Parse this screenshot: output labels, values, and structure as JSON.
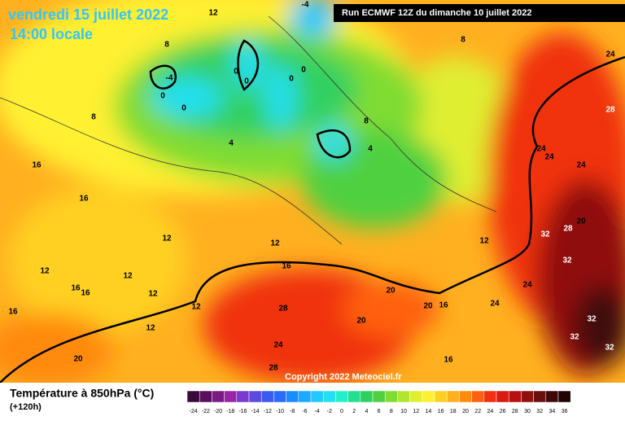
{
  "header": {
    "date": "vendredi 15 juillet 2022",
    "time": "14:00 locale",
    "run": "Run ECMWF 12Z du dimanche 10 juillet 2022"
  },
  "copyright": "Copyright 2022 Meteociel.fr",
  "legend": {
    "title": "Température à 850hPa (°C)",
    "lead": "(+120h)",
    "labels": [
      -24,
      -22,
      -20,
      -18,
      -16,
      -14,
      -12,
      -10,
      -8,
      -6,
      -4,
      -2,
      0,
      2,
      4,
      6,
      8,
      10,
      12,
      14,
      16,
      18,
      20,
      22,
      24,
      26,
      28,
      30,
      32,
      34,
      36
    ],
    "colors": [
      "#3a0a3a",
      "#5a0f5e",
      "#7a1a86",
      "#9a24a8",
      "#7a3ad0",
      "#5a4ae0",
      "#3a5af0",
      "#2a6aff",
      "#1a8cff",
      "#1aaaff",
      "#22c8ff",
      "#22e0f0",
      "#22f0c8",
      "#22e090",
      "#30d060",
      "#50d040",
      "#80dc30",
      "#b0e630",
      "#e0ee30",
      "#fff030",
      "#ffd020",
      "#ffb020",
      "#ff8a10",
      "#ff6010",
      "#f03010",
      "#d81a10",
      "#b81010",
      "#901010",
      "#681010",
      "#400808",
      "#200404"
    ]
  },
  "contour_labels": [
    12,
    8,
    8,
    24,
    -4,
    0,
    0,
    0,
    0,
    0,
    0,
    8,
    4,
    8,
    4,
    28,
    16,
    16,
    24,
    24,
    24,
    12,
    12,
    20,
    28,
    32,
    12,
    12,
    12,
    16,
    32,
    16,
    16,
    12,
    12,
    20,
    20,
    16,
    24,
    24,
    16,
    28,
    20,
    12,
    32,
    32,
    32,
    24,
    20,
    16,
    28,
    -4
  ]
}
